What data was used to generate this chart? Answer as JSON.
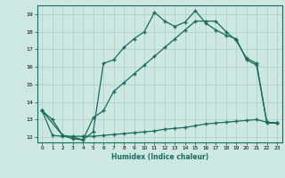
{
  "xlabel": "Humidex (Indice chaleur)",
  "ylabel": "",
  "xlim": [
    -0.5,
    23.5
  ],
  "ylim": [
    11.7,
    19.5
  ],
  "yticks": [
    12,
    13,
    14,
    15,
    16,
    17,
    18,
    19
  ],
  "xticks": [
    0,
    1,
    2,
    3,
    4,
    5,
    6,
    7,
    8,
    9,
    10,
    11,
    12,
    13,
    14,
    15,
    16,
    17,
    18,
    19,
    20,
    21,
    22,
    23
  ],
  "bg_color": "#cce8e0",
  "line_color": "#1a6b5a",
  "grid_color": "#aaccc4",
  "line1_x": [
    0,
    1,
    2,
    3,
    4,
    5,
    6,
    7,
    8,
    9,
    10,
    11,
    12,
    13,
    14,
    15,
    16,
    17,
    18,
    19,
    20,
    21,
    22,
    23
  ],
  "line1_y": [
    13.5,
    13.0,
    12.1,
    11.9,
    11.85,
    12.3,
    16.2,
    16.4,
    17.1,
    17.6,
    18.0,
    19.1,
    18.6,
    18.3,
    18.55,
    19.2,
    18.5,
    18.1,
    17.8,
    17.6,
    16.4,
    16.1,
    12.8,
    12.8
  ],
  "line2_x": [
    0,
    2,
    3,
    4,
    5,
    6,
    7,
    8,
    9,
    10,
    11,
    12,
    13,
    14,
    15,
    16,
    17,
    18,
    19,
    20,
    21,
    22,
    23
  ],
  "line2_y": [
    13.5,
    12.1,
    12.0,
    11.85,
    13.1,
    13.5,
    14.6,
    15.1,
    15.6,
    16.1,
    16.6,
    17.1,
    17.6,
    18.1,
    18.6,
    18.6,
    18.6,
    18.0,
    17.5,
    16.5,
    16.2,
    12.85,
    12.8
  ],
  "line3_x": [
    0,
    1,
    2,
    3,
    4,
    5,
    6,
    7,
    8,
    9,
    10,
    11,
    12,
    13,
    14,
    15,
    16,
    17,
    18,
    19,
    20,
    21,
    22,
    23
  ],
  "line3_y": [
    13.5,
    12.1,
    12.05,
    12.05,
    12.05,
    12.05,
    12.1,
    12.15,
    12.2,
    12.25,
    12.3,
    12.35,
    12.45,
    12.5,
    12.55,
    12.65,
    12.75,
    12.8,
    12.85,
    12.9,
    12.95,
    13.0,
    12.85,
    12.8
  ]
}
